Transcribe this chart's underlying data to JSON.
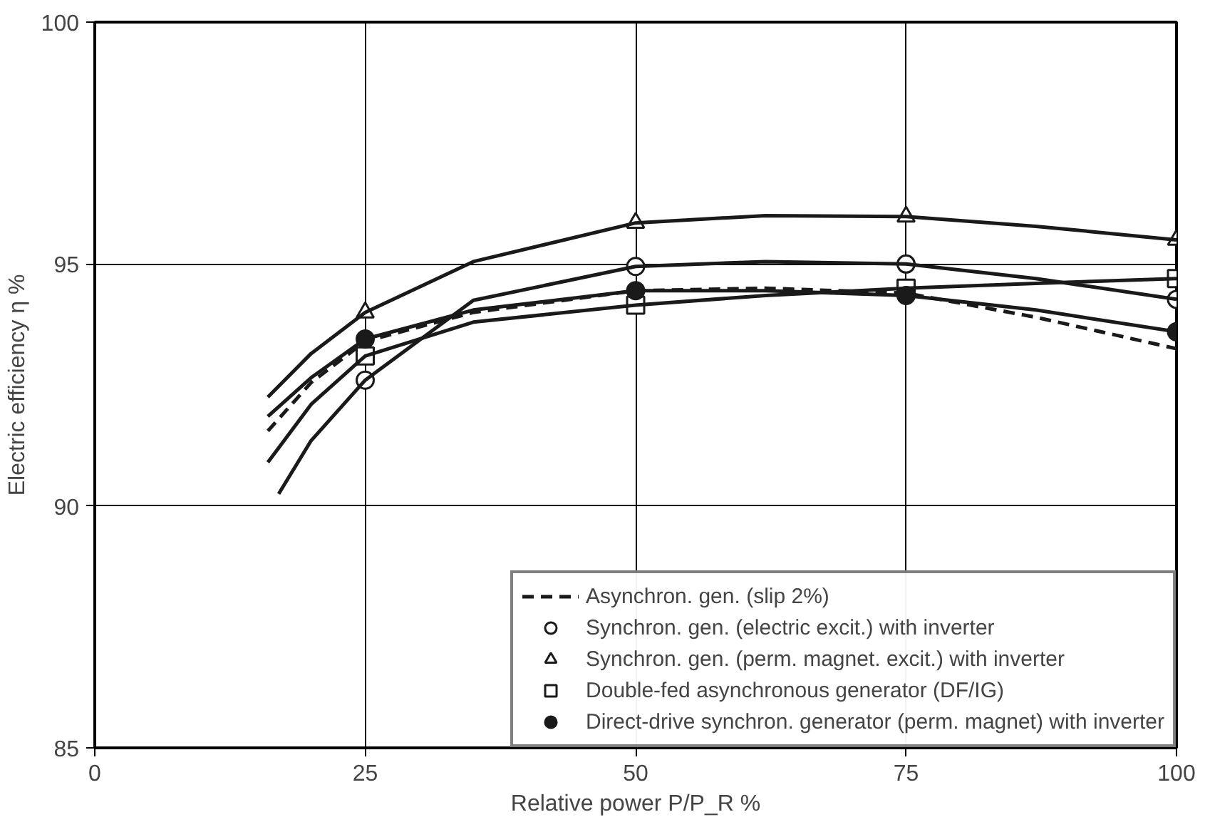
{
  "chart_data": {
    "type": "line",
    "xlabel": "Relative power P/P_R %",
    "ylabel": "Electric efficiency η %",
    "xlim": [
      0,
      100
    ],
    "ylim": [
      85,
      100
    ],
    "xticks": [
      0,
      25,
      50,
      75,
      100
    ],
    "yticks": [
      85,
      90,
      95,
      100
    ],
    "x": [
      16,
      20,
      25,
      35,
      50,
      62,
      75,
      87,
      100
    ],
    "grid": true,
    "legend": "bottom right",
    "series": [
      {
        "name": "Asynchron. gen. (slip 2%)",
        "color": "#1a1a1a",
        "line_style": "dashed",
        "marker": "none",
        "values": [
          91.55,
          92.55,
          93.4,
          94.0,
          94.45,
          94.5,
          94.4,
          93.9,
          93.25
        ]
      },
      {
        "name": "Synchron. gen. (electric excit.) with inverter",
        "type": "scatter",
        "color": "#1a1a1a",
        "colors": [
          "#ffffff",
          "#ffffff",
          "#ffffff",
          "#ffffff"
        ],
        "line_style": "solid",
        "marker": "circle",
        "x": [
          25,
          50,
          75,
          100
        ],
        "values": [
          92.6,
          94.95,
          95.0,
          94.27
        ]
      },
      {
        "name": "Synchron. gen. (perm. magnet. excit.) with inverter",
        "type": "scatter",
        "color": "#1a1a1a",
        "colors": [
          "#ffffff",
          "#ffffff",
          "#ffffff",
          "#ffffff"
        ],
        "line_style": "solid",
        "marker": "triangle",
        "x": [
          25,
          50,
          75,
          100
        ],
        "values": [
          94.0,
          95.85,
          95.98,
          95.5
        ]
      },
      {
        "name": "Double-fed asynchronous generator (DF/IG)",
        "type": "scatter",
        "color": "#1a1a1a",
        "colors": [
          "#ffffff",
          "#ffffff",
          "#ffffff",
          "#ffffff"
        ],
        "line_style": "solid",
        "marker": "square",
        "x": [
          25,
          50,
          75,
          100
        ],
        "values": [
          93.1,
          94.15,
          94.5,
          94.7
        ]
      },
      {
        "name": "Direct-drive synchron. generator (perm. magnet) with inverter",
        "type": "scatter",
        "color": "#1a1a1a",
        "line_style": "solid",
        "marker": "circle",
        "x": [
          25,
          50,
          75,
          100
        ],
        "values": [
          93.45,
          94.45,
          94.35,
          93.6
        ]
      },
      {
        "color": "#1a1a1a",
        "line_style": "solid",
        "marker": "none",
        "x": [
          17,
          20,
          25,
          35,
          50,
          62,
          75,
          87,
          100
        ],
        "values": [
          90.25,
          91.35,
          92.6,
          94.25,
          94.95,
          95.05,
          95.0,
          94.7,
          94.27
        ]
      },
      {
        "color": "#1a1a1a",
        "line_style": "solid",
        "marker": "none",
        "values": [
          92.25,
          93.15,
          94.0,
          95.05,
          95.85,
          96.0,
          95.98,
          95.78,
          95.5
        ]
      },
      {
        "color": "#1a1a1a",
        "line_style": "solid",
        "marker": "none",
        "values": [
          90.9,
          92.1,
          93.1,
          93.8,
          94.15,
          94.35,
          94.5,
          94.6,
          94.7
        ]
      },
      {
        "color": "#1a1a1a",
        "line_style": "solid",
        "marker": "none",
        "values": [
          91.85,
          92.65,
          93.45,
          94.05,
          94.45,
          94.45,
          94.35,
          94.05,
          93.6
        ]
      }
    ]
  }
}
